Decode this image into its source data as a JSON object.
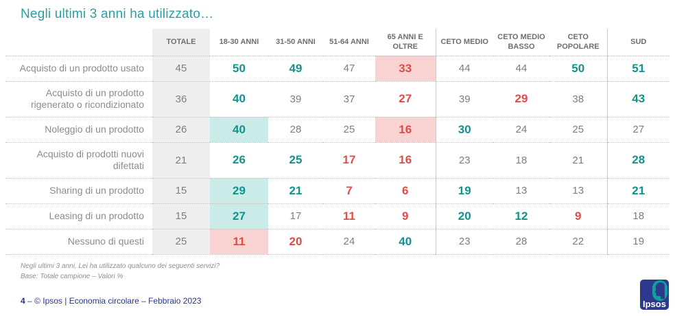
{
  "title": "Negli ultimi 3 anni ha utilizzato…",
  "chart_data": {
    "type": "table",
    "title": "Negli ultimi 3 anni ha utilizzato…",
    "unit": "Valori %",
    "columns": [
      "TOTALE",
      "18-30 ANNI",
      "31-50 ANNI",
      "51-64 ANNI",
      "65 ANNI E OLTRE",
      "CETO MEDIO",
      "CETO MEDIO BASSO",
      "CETO POPOLARE",
      "SUD"
    ],
    "rows": [
      {
        "label": "Acquisto di un prodotto usato",
        "values": [
          45,
          50,
          49,
          47,
          33,
          44,
          44,
          50,
          51
        ],
        "styles": [
          "plain",
          "up",
          "up",
          "plain",
          "down",
          "plain",
          "plain",
          "up",
          "up"
        ],
        "backgrounds": [
          null,
          null,
          null,
          null,
          "pink",
          null,
          null,
          null,
          null
        ]
      },
      {
        "label": "Acquisto di un prodotto rigenerato o ricondizionato",
        "values": [
          36,
          40,
          39,
          37,
          27,
          39,
          29,
          38,
          43
        ],
        "styles": [
          "plain",
          "up",
          "plain",
          "plain",
          "down",
          "plain",
          "down",
          "plain",
          "up"
        ],
        "backgrounds": [
          null,
          null,
          null,
          null,
          null,
          null,
          null,
          null,
          null
        ]
      },
      {
        "label": "Noleggio di un prodotto",
        "values": [
          26,
          40,
          28,
          25,
          16,
          30,
          24,
          25,
          27
        ],
        "styles": [
          "plain",
          "up",
          "plain",
          "plain",
          "down",
          "up",
          "plain",
          "plain",
          "plain"
        ],
        "backgrounds": [
          null,
          "teal",
          null,
          null,
          "pink",
          null,
          null,
          null,
          null
        ]
      },
      {
        "label": "Acquisto di prodotti nuovi difettati",
        "values": [
          21,
          26,
          25,
          17,
          16,
          23,
          18,
          21,
          28
        ],
        "styles": [
          "plain",
          "up",
          "up",
          "down",
          "down",
          "plain",
          "plain",
          "plain",
          "up"
        ],
        "backgrounds": [
          null,
          null,
          null,
          null,
          null,
          null,
          null,
          null,
          null
        ]
      },
      {
        "label": "Sharing di un prodotto",
        "values": [
          15,
          29,
          21,
          7,
          6,
          19,
          13,
          13,
          21
        ],
        "styles": [
          "plain",
          "up",
          "up",
          "down",
          "down",
          "up",
          "plain",
          "plain",
          "up"
        ],
        "backgrounds": [
          null,
          "teal",
          null,
          null,
          null,
          null,
          null,
          null,
          null
        ]
      },
      {
        "label": "Leasing di un prodotto",
        "values": [
          15,
          27,
          17,
          11,
          9,
          20,
          12,
          9,
          18
        ],
        "styles": [
          "plain",
          "up",
          "plain",
          "down",
          "down",
          "up",
          "up",
          "down",
          "plain"
        ],
        "backgrounds": [
          null,
          "teal",
          null,
          null,
          null,
          null,
          null,
          null,
          null
        ]
      },
      {
        "label": "Nessuno di questi",
        "values": [
          25,
          11,
          20,
          24,
          40,
          23,
          28,
          22,
          19
        ],
        "styles": [
          "plain",
          "down",
          "down",
          "plain",
          "up",
          "plain",
          "plain",
          "plain",
          "plain"
        ],
        "backgrounds": [
          null,
          "pink",
          null,
          null,
          null,
          null,
          null,
          null,
          null
        ]
      }
    ],
    "style_semantics": {
      "up": "significantly higher (teal bold)",
      "down": "significantly lower (red bold)",
      "plain": "no significant difference (gray)"
    }
  },
  "colors": {
    "title_teal": "#2a9ea3",
    "value_teal": "#0e938e",
    "value_red": "#e04b48",
    "cell_bg_teal": "#cbebe8",
    "cell_bg_pink": "#f8d3d2",
    "totale_column_bg": "#efefef",
    "footer_navy": "#28338a"
  },
  "footnotes": [
    "Negli ultimi 3 anni, Lei ha utilizzato qualcuno dei seguenti servizi?",
    "Base: Totale campione – Valori %"
  ],
  "footer": {
    "page": "4",
    "dash": "–",
    "text": "© Ipsos | Economia circolare – Febbraio 2023"
  },
  "logo": {
    "text": "Ipsos"
  }
}
